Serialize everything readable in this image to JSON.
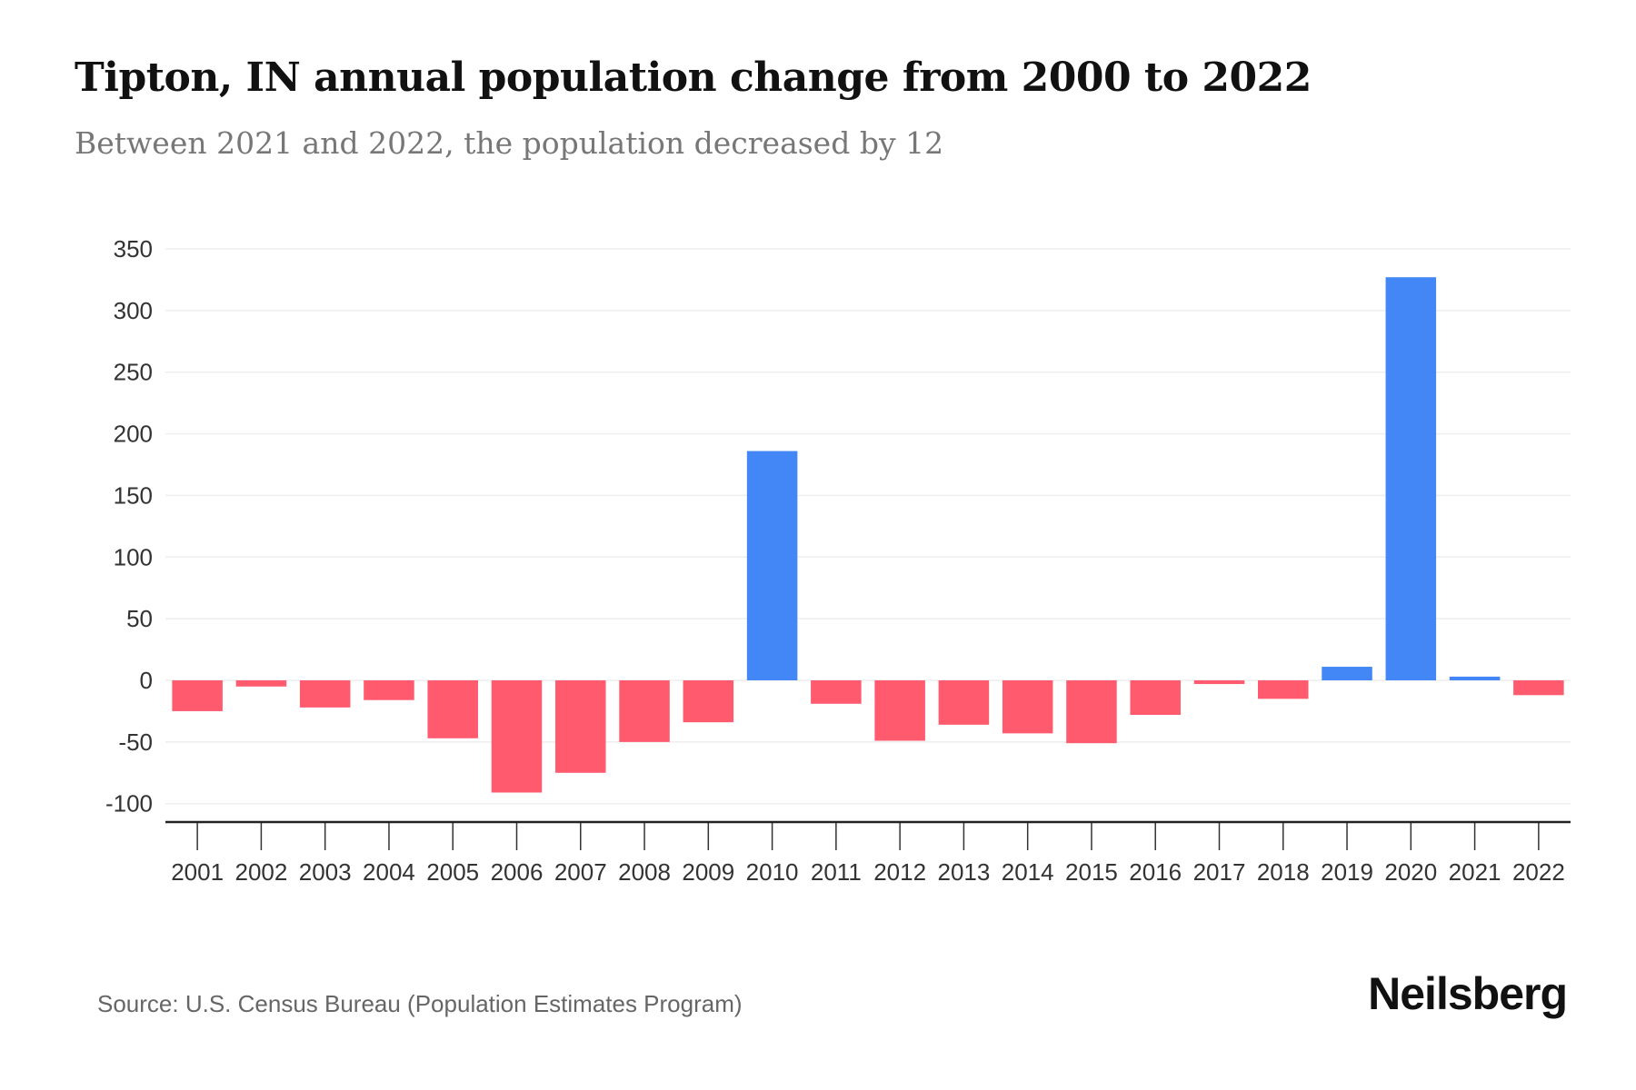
{
  "title": "Tipton, IN annual population change from 2000 to 2022",
  "subtitle": "Between 2021 and 2022, the population decreased by 12",
  "source": "Source: U.S. Census Bureau (Population Estimates Program)",
  "logo": "Neilsberg",
  "colors": {
    "positive": "#4287f5",
    "negative": "#ff5a6e",
    "grid": "#eeeeee",
    "axis": "#222222"
  },
  "chart_data": {
    "type": "bar",
    "title": "Tipton, IN annual population change from 2000 to 2022",
    "xlabel": "",
    "ylabel": "",
    "ylim": [
      -115,
      350
    ],
    "yticks": [
      350,
      300,
      250,
      200,
      150,
      100,
      50,
      0,
      -50,
      -100
    ],
    "grid": true,
    "categories": [
      "2001",
      "2002",
      "2003",
      "2004",
      "2005",
      "2006",
      "2007",
      "2008",
      "2009",
      "2010",
      "2011",
      "2012",
      "2013",
      "2014",
      "2015",
      "2016",
      "2017",
      "2018",
      "2019",
      "2020",
      "2021",
      "2022"
    ],
    "values": [
      -25,
      -5,
      -22,
      -16,
      -47,
      -91,
      -75,
      -50,
      -34,
      186,
      -19,
      -49,
      -36,
      -43,
      -51,
      -28,
      -3,
      -15,
      11,
      327,
      3,
      -12
    ]
  }
}
